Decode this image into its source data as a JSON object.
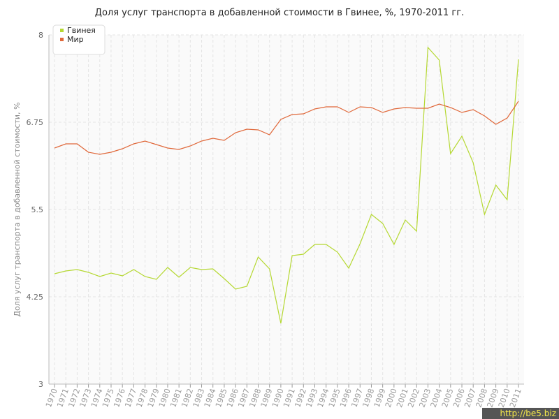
{
  "chart_data": {
    "type": "line",
    "title": "Доля услуг транспорта в добавленной стоимости в Гвинее, %, 1970-2011 гг.",
    "y_label": "Доля услуг транспорта в добавленной стоимости, %",
    "watermark": "http://be5.biz",
    "x": [
      1970,
      1971,
      1972,
      1973,
      1974,
      1975,
      1976,
      1977,
      1978,
      1979,
      1980,
      1981,
      1982,
      1983,
      1984,
      1985,
      1986,
      1987,
      1988,
      1989,
      1990,
      1991,
      1992,
      1993,
      1994,
      1995,
      1996,
      1997,
      1998,
      1999,
      2000,
      2001,
      2002,
      2003,
      2004,
      2005,
      2006,
      2007,
      2008,
      2009,
      2010,
      2011
    ],
    "series": [
      {
        "name": "Гвинея",
        "color": "#b5d832",
        "values": [
          4.58,
          4.62,
          4.64,
          4.6,
          4.54,
          4.59,
          4.55,
          4.64,
          4.54,
          4.5,
          4.67,
          4.53,
          4.67,
          4.64,
          4.65,
          4.51,
          4.36,
          4.4,
          4.82,
          4.65,
          3.87,
          4.84,
          4.86,
          5.0,
          5.0,
          4.89,
          4.66,
          5.01,
          5.43,
          5.3,
          5.0,
          5.35,
          5.19,
          7.82,
          7.64,
          6.3,
          6.55,
          6.17,
          5.43,
          5.85,
          5.64,
          7.65
        ]
      },
      {
        "name": "Мир",
        "color": "#e0683a",
        "values": [
          6.38,
          6.44,
          6.44,
          6.32,
          6.29,
          6.32,
          6.37,
          6.44,
          6.48,
          6.43,
          6.38,
          6.36,
          6.41,
          6.48,
          6.52,
          6.49,
          6.6,
          6.65,
          6.64,
          6.57,
          6.79,
          6.86,
          6.87,
          6.94,
          6.97,
          6.97,
          6.89,
          6.97,
          6.96,
          6.89,
          6.94,
          6.96,
          6.95,
          6.95,
          7.01,
          6.96,
          6.89,
          6.93,
          6.84,
          6.72,
          6.81,
          7.05
        ]
      }
    ],
    "xlim": [
      1970,
      2011
    ],
    "ylim": [
      3,
      8
    ],
    "yticks": [
      3,
      4.25,
      5.5,
      6.75,
      8
    ],
    "grid": true,
    "legend": "top-left"
  }
}
